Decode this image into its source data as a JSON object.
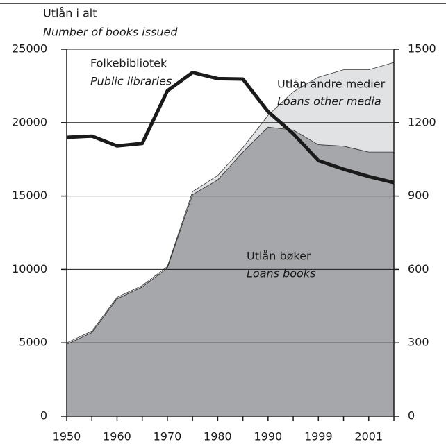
{
  "chart_data": {
    "type": "area",
    "title": "Utlån i alt",
    "subtitle": "Number of books issued",
    "categories": [
      "1950",
      null,
      "1960",
      null,
      "1970",
      null,
      "1980",
      null,
      "1990",
      null,
      "1999",
      null,
      "2001",
      null
    ],
    "stacked": true,
    "series": [
      {
        "name": "Utlån bøker",
        "name_translation": "Loans books",
        "color": "#a6a7aa",
        "values": [
          4900,
          5700,
          8000,
          8800,
          10100,
          15100,
          16100,
          18000,
          19700,
          19500,
          18500,
          18400,
          18000,
          18000
        ]
      },
      {
        "name": "Utlån andre medier",
        "name_translation": "Loans other media",
        "color": "#e1e2e4",
        "values": [
          100,
          100,
          100,
          100,
          100,
          200,
          300,
          300,
          800,
          2600,
          4600,
          5200,
          5600,
          6100
        ]
      },
      {
        "name": "Folkebibliotek",
        "name_translation": "Public libraries",
        "color": "#1a1a1a",
        "type": "line",
        "axis": "y2",
        "values": [
          1140,
          1145,
          1105,
          1115,
          1330,
          1405,
          1380,
          1378,
          1245,
          1155,
          1045,
          1010,
          980,
          955
        ]
      }
    ],
    "ylim": [
      0,
      25000
    ],
    "yticks": [
      0,
      5000,
      10000,
      15000,
      20000,
      25000
    ],
    "y2lim": [
      0,
      1500
    ],
    "y2ticks": [
      0,
      300,
      600,
      900,
      1200,
      1500
    ],
    "grid": true
  }
}
